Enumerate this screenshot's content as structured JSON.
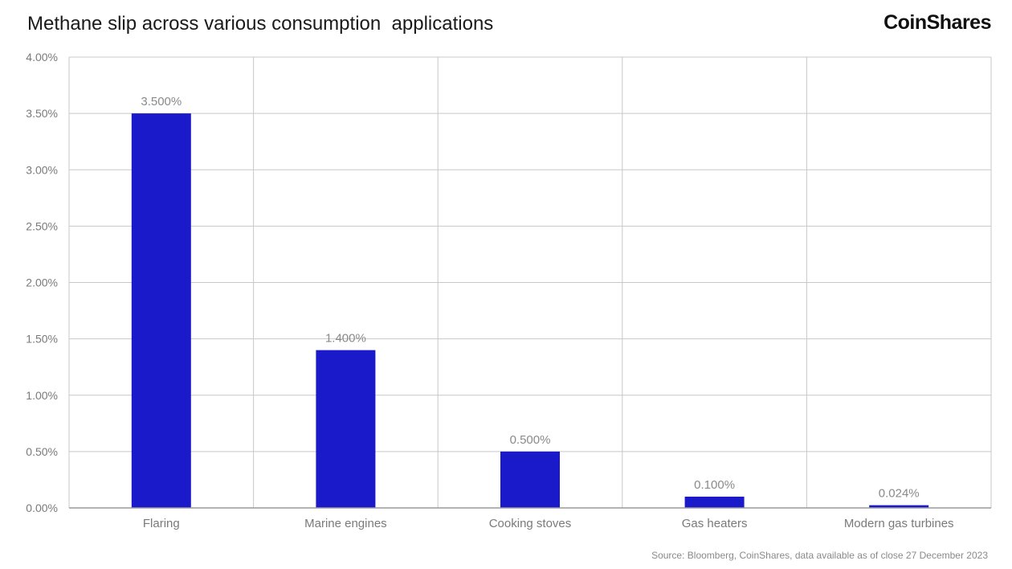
{
  "header": {
    "title": "Methane slip across various consumption  applications",
    "logo": "CoinShares"
  },
  "footer": {
    "source": "Source: Bloomberg, CoinShares, data available as of close 27 December 2023"
  },
  "colors": {
    "bar": "#1a1acb",
    "grid": "#c8c8c8",
    "axis": "#9a9a9a"
  },
  "chart_data": {
    "type": "bar",
    "title": "Methane slip across various consumption  applications",
    "xlabel": "",
    "ylabel": "",
    "ylim": [
      0,
      0.04
    ],
    "yticks": [
      0,
      0.005,
      0.01,
      0.015,
      0.02,
      0.025,
      0.03,
      0.035,
      0.04
    ],
    "ytick_labels": [
      "0.00%",
      "0.50%",
      "1.00%",
      "1.50%",
      "2.00%",
      "2.50%",
      "3.00%",
      "3.50%",
      "4.00%"
    ],
    "categories": [
      "Flaring",
      "Marine engines",
      "Cooking stoves",
      "Gas heaters",
      "Modern gas turbines"
    ],
    "values": [
      0.035,
      0.014,
      0.005,
      0.001,
      0.00024
    ],
    "data_labels": [
      "3.500%",
      "1.400%",
      "0.500%",
      "0.100%",
      "0.024%"
    ],
    "grid": true,
    "legend": "none"
  }
}
